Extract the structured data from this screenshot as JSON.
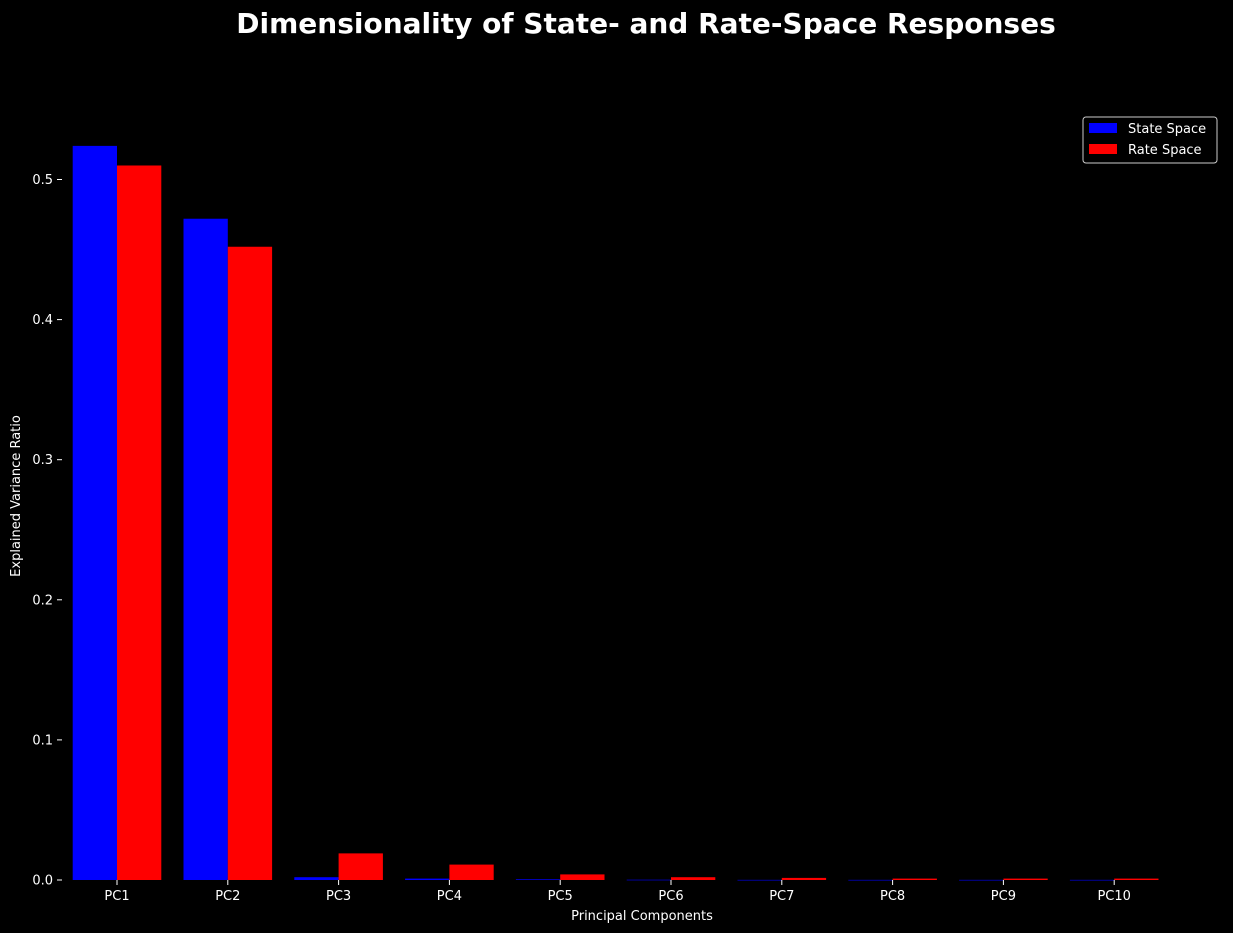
{
  "chart_data": {
    "type": "bar",
    "title": "Dimensionality of State- and Rate-Space Responses",
    "xlabel": "Principal Components",
    "ylabel": "Explained Variance Ratio",
    "categories": [
      "PC1",
      "PC2",
      "PC3",
      "PC4",
      "PC5",
      "PC6",
      "PC7",
      "PC8",
      "PC9",
      "PC10"
    ],
    "series": [
      {
        "name": "State Space",
        "color": "#0000ff",
        "values": [
          0.524,
          0.472,
          0.002,
          0.001,
          0.0005,
          0.0002,
          0.0001,
          0.0001,
          0.0001,
          0.0001
        ]
      },
      {
        "name": "Rate Space",
        "color": "#ff0000",
        "values": [
          0.51,
          0.452,
          0.019,
          0.011,
          0.004,
          0.002,
          0.0015,
          0.001,
          0.001,
          0.001
        ]
      }
    ],
    "ylim": [
      0,
      0.55
    ],
    "yticks": [
      0.0,
      0.1,
      0.2,
      0.3,
      0.4,
      0.5
    ],
    "ytick_labels": [
      "0.0",
      "0.1",
      "0.2",
      "0.3",
      "0.4",
      "0.5"
    ],
    "grid": false,
    "legend_position": "top-right",
    "background": "#000000",
    "text_color": "#ffffff"
  }
}
